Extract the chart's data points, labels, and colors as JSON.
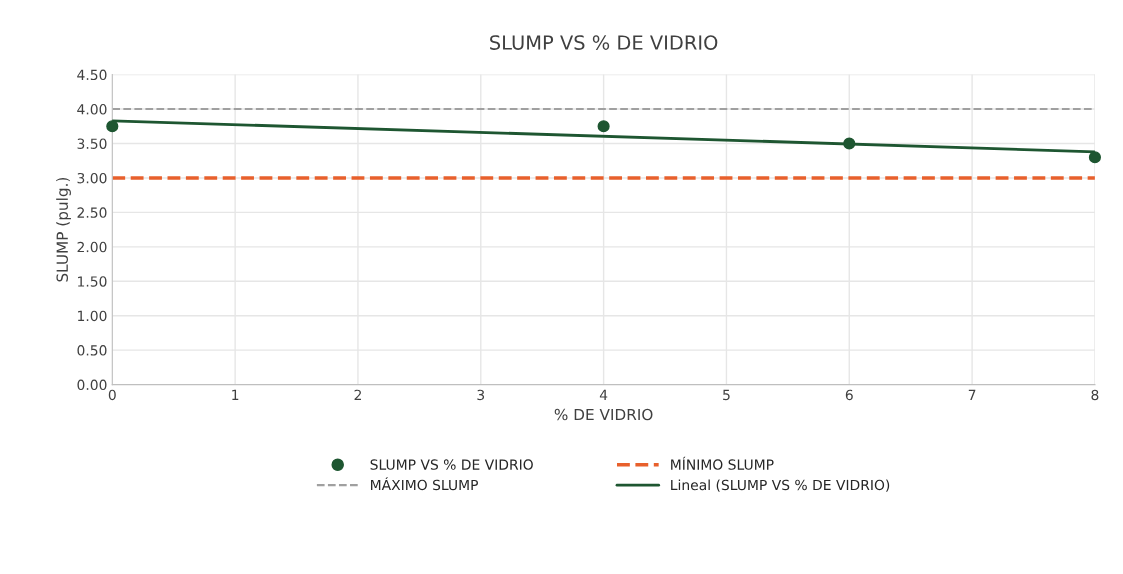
{
  "chart_data": {
    "type": "scatter",
    "title": "SLUMP VS % DE VIDRIO",
    "xlabel": "% DE VIDRIO",
    "ylabel": "SLUMP (pulg.)",
    "series": [
      {
        "name": "SLUMP VS % DE VIDRIO",
        "color": "#1e5631",
        "x": [
          0,
          4,
          6,
          8
        ],
        "values": [
          3.75,
          3.75,
          3.5,
          3.3
        ],
        "marker": "circle"
      },
      {
        "name": "Lineal (SLUMP VS % DE VIDRIO)",
        "type": "line",
        "color": "#1e5631",
        "x": [
          0,
          8
        ],
        "values": [
          3.83,
          3.38
        ],
        "marker": "none",
        "line_style": "solid"
      }
    ],
    "ref_lines": [
      {
        "axis": "y",
        "value": 3,
        "label": "MÍNIMO SLUMP",
        "color": "#e8602c",
        "line_style": "dashed"
      },
      {
        "axis": "y",
        "value": 4,
        "label": "MÁXIMO SLUMP",
        "color": "#a0a0a0",
        "line_style": "dashed"
      }
    ],
    "xlim": [
      0,
      8
    ],
    "xticks": [
      0,
      1,
      2,
      3,
      4,
      5,
      6,
      7,
      8
    ],
    "ylim": [
      0,
      4.5
    ],
    "yticks": [
      {
        "value": 0,
        "label": "0.00"
      },
      {
        "value": 0.5,
        "label": "0.50"
      },
      {
        "value": 1,
        "label": "1.00"
      },
      {
        "value": 1.5,
        "label": "1.50"
      },
      {
        "value": 2,
        "label": "2.00"
      },
      {
        "value": 2.5,
        "label": "2.50"
      },
      {
        "value": 3,
        "label": "3.00"
      },
      {
        "value": 3.5,
        "label": "3.50"
      },
      {
        "value": 4,
        "label": "4.00"
      },
      {
        "value": 4.5,
        "label": "4.50"
      }
    ],
    "grid": true,
    "legend": "bottom"
  }
}
